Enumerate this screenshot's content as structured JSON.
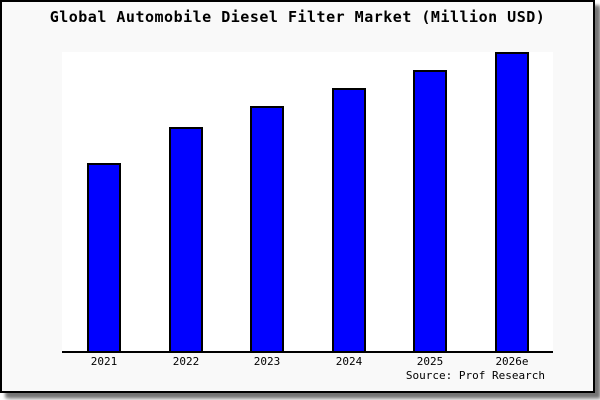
{
  "title": "Global Automobile Diesel Filter Market (Million USD)",
  "source_note": "Source: Prof Research",
  "colors": {
    "bar_fill": "#0000ff",
    "bar_border": "#000000",
    "frame_background": "#f9f9f9",
    "plot_background": "#ffffff",
    "axis": "#000000",
    "text": "#000000"
  },
  "chart_data": {
    "type": "bar",
    "title": "Global Automobile Diesel Filter Market (Million USD)",
    "categories": [
      "2021",
      "2022",
      "2023",
      "2024",
      "2025",
      "2026e"
    ],
    "values": [
      63,
      75,
      82,
      88,
      94,
      100
    ],
    "values_unit": "relative index (tallest bar 2026e = 100; no numeric y-axis shown)",
    "xlabel": "",
    "ylabel": "",
    "ylim": [
      0,
      100
    ],
    "grid": false,
    "y_axis_ticks_visible": false,
    "legend": null,
    "annotations": [
      "Source: Prof Research"
    ]
  }
}
